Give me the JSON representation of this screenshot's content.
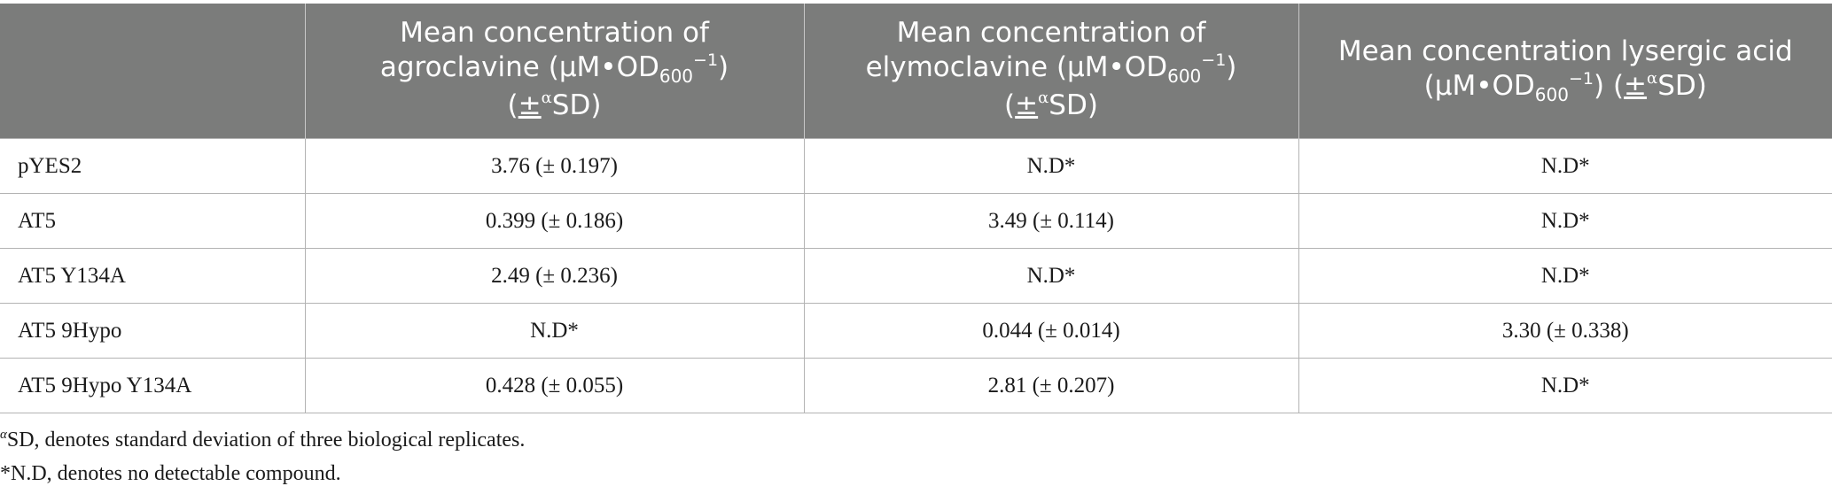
{
  "table": {
    "headers": [
      {
        "label": "",
        "line1": "",
        "unit_pre": "",
        "unit_sub": "",
        "unit_sup": "",
        "unit_post": "",
        "sd_pm": "",
        "sd_sup": "",
        "sd_post": ""
      },
      {
        "line1": "Mean concentration of agroclavine (µM•OD",
        "unit_sub": "600",
        "unit_sup": "−1",
        "unit_post": ")",
        "sd_open": "(",
        "sd_pm": "±",
        "sd_sup": "α",
        "sd_post": "SD)"
      },
      {
        "line1": "Mean concentration of elymoclavine (µM•OD",
        "unit_sub": "600",
        "unit_sup": "−1",
        "unit_post": ")",
        "sd_open": "(",
        "sd_pm": "±",
        "sd_sup": "α",
        "sd_post": "SD)"
      },
      {
        "line1": "Mean concentration lysergic acid (µM•OD",
        "unit_sub": "600",
        "unit_sup": "−1",
        "unit_post": ")",
        "sd_open": " (",
        "sd_pm": "±",
        "sd_sup": "α",
        "sd_post": "SD)"
      }
    ],
    "rows": [
      {
        "strain": "pYES2",
        "agroclavine": "3.76 (± 0.197)",
        "elymoclavine": "N.D*",
        "lysergic_acid": "N.D*"
      },
      {
        "strain": "AT5",
        "agroclavine": "0.399 (± 0.186)",
        "elymoclavine": "3.49 (± 0.114)",
        "lysergic_acid": "N.D*"
      },
      {
        "strain": "AT5 Y134A",
        "agroclavine": "2.49 (± 0.236)",
        "elymoclavine": "N.D*",
        "lysergic_acid": "N.D*"
      },
      {
        "strain": "AT5 9Hypo",
        "agroclavine": "N.D*",
        "elymoclavine": "0.044 (± 0.014)",
        "lysergic_acid": "3.30 (± 0.338)"
      },
      {
        "strain": "AT5 9Hypo Y134A",
        "agroclavine": "0.428 (± 0.055)",
        "elymoclavine": "2.81 (± 0.207)",
        "lysergic_acid": "N.D*"
      }
    ]
  },
  "footnotes": {
    "alpha_mark": "α",
    "alpha_text": "SD, denotes standard deviation of three biological replicates.",
    "nd_text": "*N.D, denotes no detectable compound."
  },
  "colors": {
    "header_bg": "#7b7c7b",
    "header_text": "#ffffff",
    "rule": "#b3b3b3"
  }
}
